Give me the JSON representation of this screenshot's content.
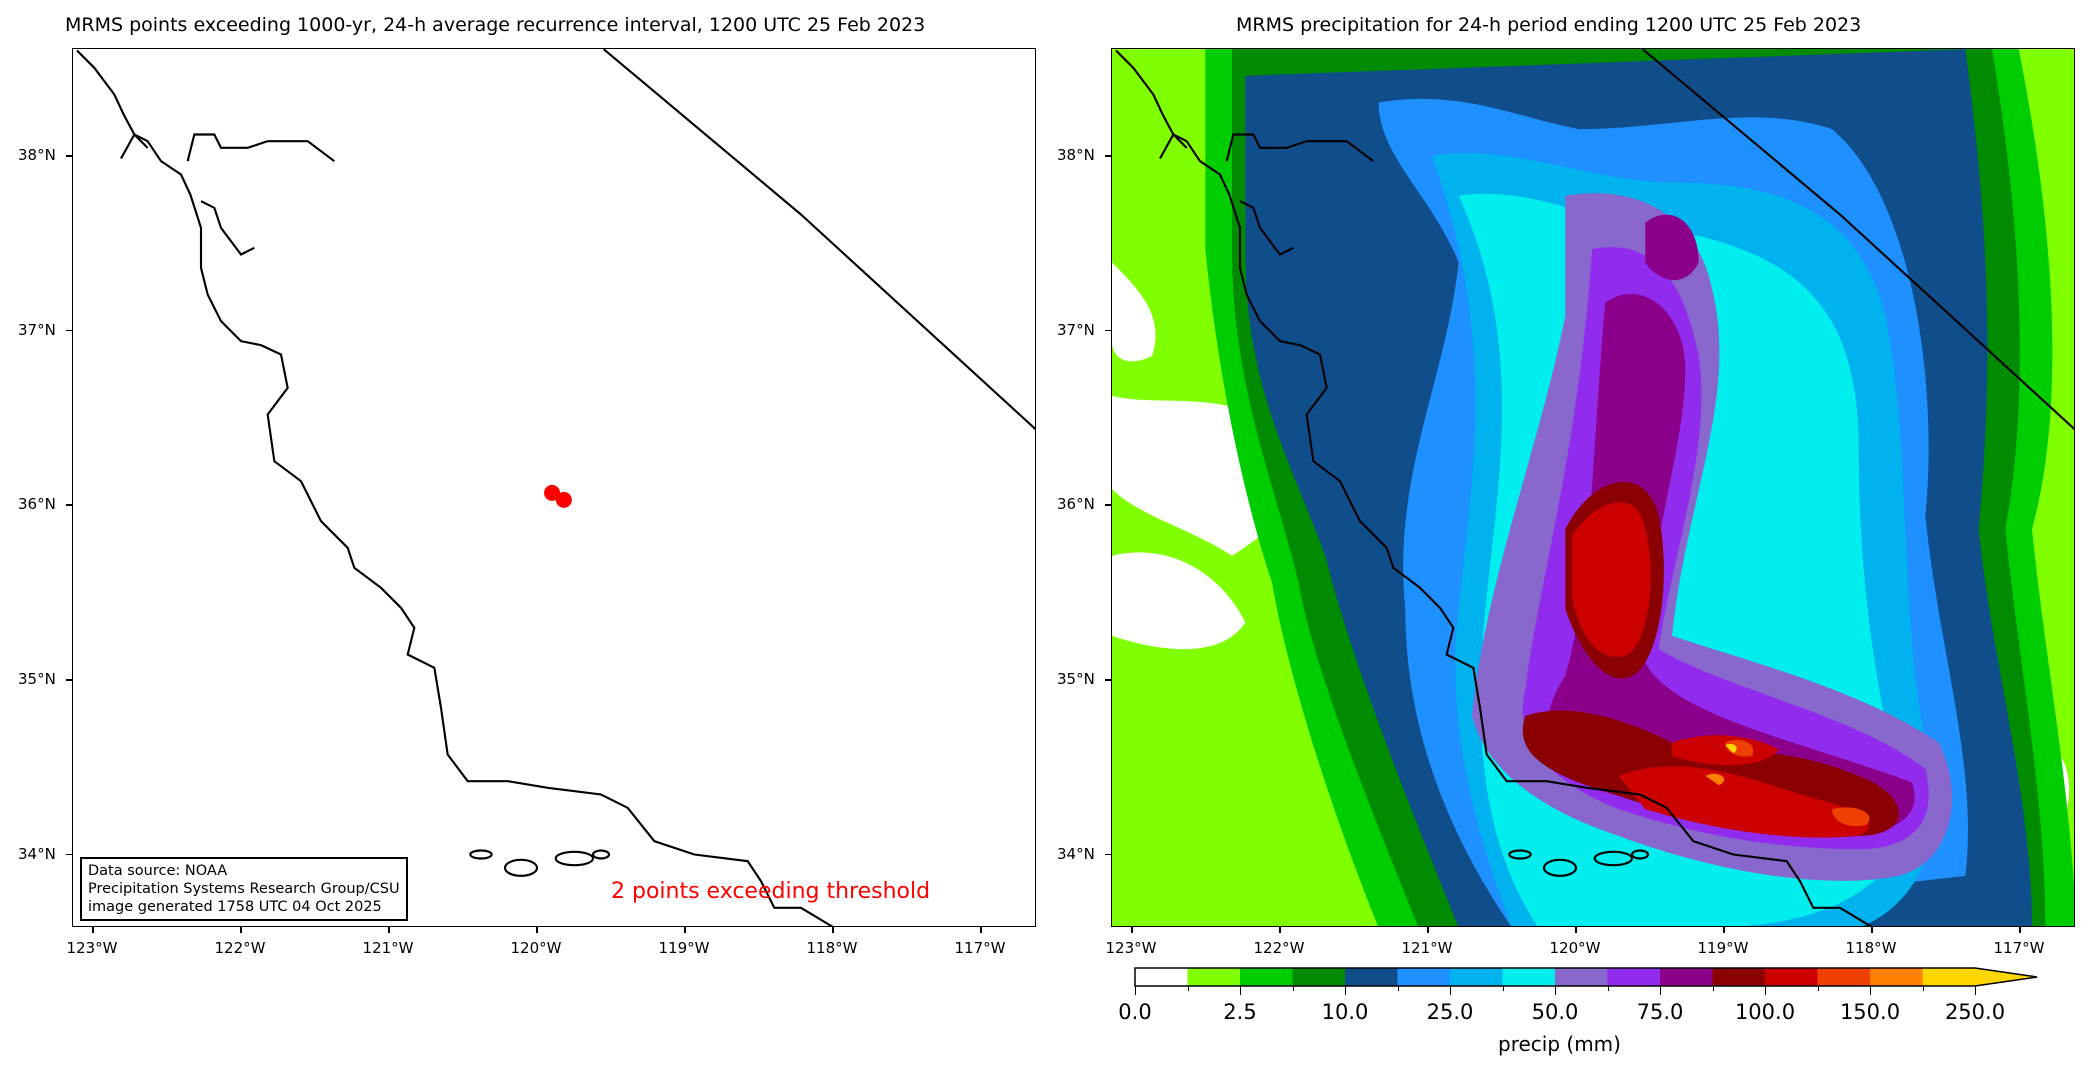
{
  "left_chart": {
    "title": "MRMS points exceeding 1000-yr, 24-h average recurrence interval, 1200 UTC 25 Feb 2023",
    "info_lines": [
      "Data source: NOAA",
      "Precipitation Systems Research Group/CSU",
      "image generated 1758 UTC 04 Oct 2025"
    ],
    "annotation": "2 points exceeding threshold",
    "annotation_color": "#ff0000",
    "point_color": "#ff0000"
  },
  "right_chart": {
    "title": "MRMS precipitation for 24-h period ending 1200 UTC 25 Feb 2023",
    "colorbar_label": "precip (mm)",
    "colorbar_tick_labels": [
      "0.0",
      "2.5",
      "10.0",
      "25.0",
      "50.0",
      "75.0",
      "100.0",
      "150.0",
      "250.0"
    ],
    "colorbar_colors": [
      "#ffffff",
      "#7fff00",
      "#00cd00",
      "#008b00",
      "#104e8b",
      "#1e90ff",
      "#00b2ee",
      "#00eeee",
      "#8968cd",
      "#912cee",
      "#8b008b",
      "#8b0000",
      "#cd0000",
      "#ee4000",
      "#ff7f00",
      "#ffd700"
    ],
    "colorbar_extend": "max"
  },
  "chart_data": [
    {
      "type": "scatter",
      "title": "MRMS points exceeding 1000-yr, 24-h average recurrence interval, 1200 UTC 25 Feb 2023",
      "x_ticks": [
        "123°W",
        "122°W",
        "121°W",
        "120°W",
        "119°W",
        "118°W",
        "117°W"
      ],
      "y_ticks": [
        "38°N",
        "37°N",
        "36°N",
        "35°N",
        "34°N"
      ],
      "xlim": [
        -123.14,
        -116.62
      ],
      "ylim": [
        33.58,
        38.61
      ],
      "points": [
        {
          "lon": -119.9,
          "lat": 36.07
        },
        {
          "lon": -119.82,
          "lat": 36.03
        }
      ]
    },
    {
      "type": "heatmap",
      "title": "MRMS precipitation for 24-h period ending 1200 UTC 25 Feb 2023",
      "x_ticks": [
        "123°W",
        "122°W",
        "121°W",
        "120°W",
        "119°W",
        "118°W",
        "117°W"
      ],
      "y_ticks": [
        "38°N",
        "37°N",
        "36°N",
        "35°N",
        "34°N"
      ],
      "xlim": [
        -123.14,
        -116.62
      ],
      "ylim": [
        33.58,
        38.61
      ],
      "colorbar_label": "precip (mm)"
    }
  ]
}
